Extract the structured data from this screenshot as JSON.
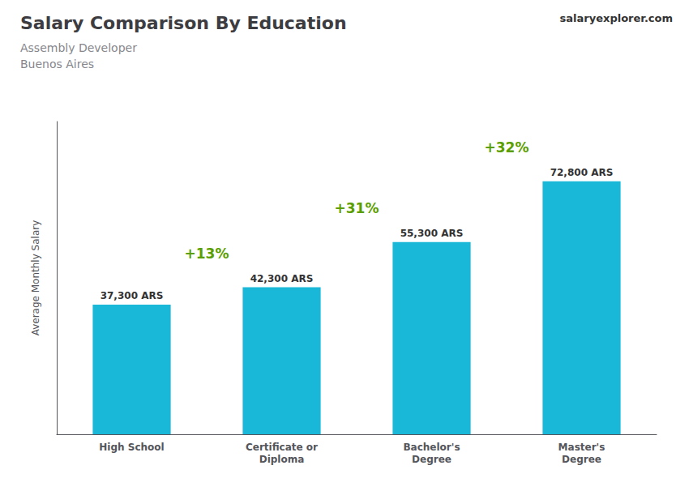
{
  "chart_data": {
    "type": "bar",
    "title": "Salary Comparison By Education",
    "subtitle": [
      "Assembly Developer",
      "Buenos Aires"
    ],
    "ylabel": "Average Monthly Salary",
    "categories": [
      "High School",
      "Certificate or\nDiploma",
      "Bachelor's\nDegree",
      "Master's\nDegree"
    ],
    "values": [
      37300,
      42300,
      55300,
      72800
    ],
    "value_labels": [
      "37,300 ARS",
      "42,300 ARS",
      "55,300 ARS",
      "72,800 ARS"
    ],
    "data_labels": true,
    "annotations": [
      "+13%",
      "+31%",
      "+32%",
      "salaryexplorer.com"
    ],
    "color": "#1ab8d8",
    "ylim": [
      0,
      90000
    ],
    "tick_labels": "x",
    "grid": false
  }
}
